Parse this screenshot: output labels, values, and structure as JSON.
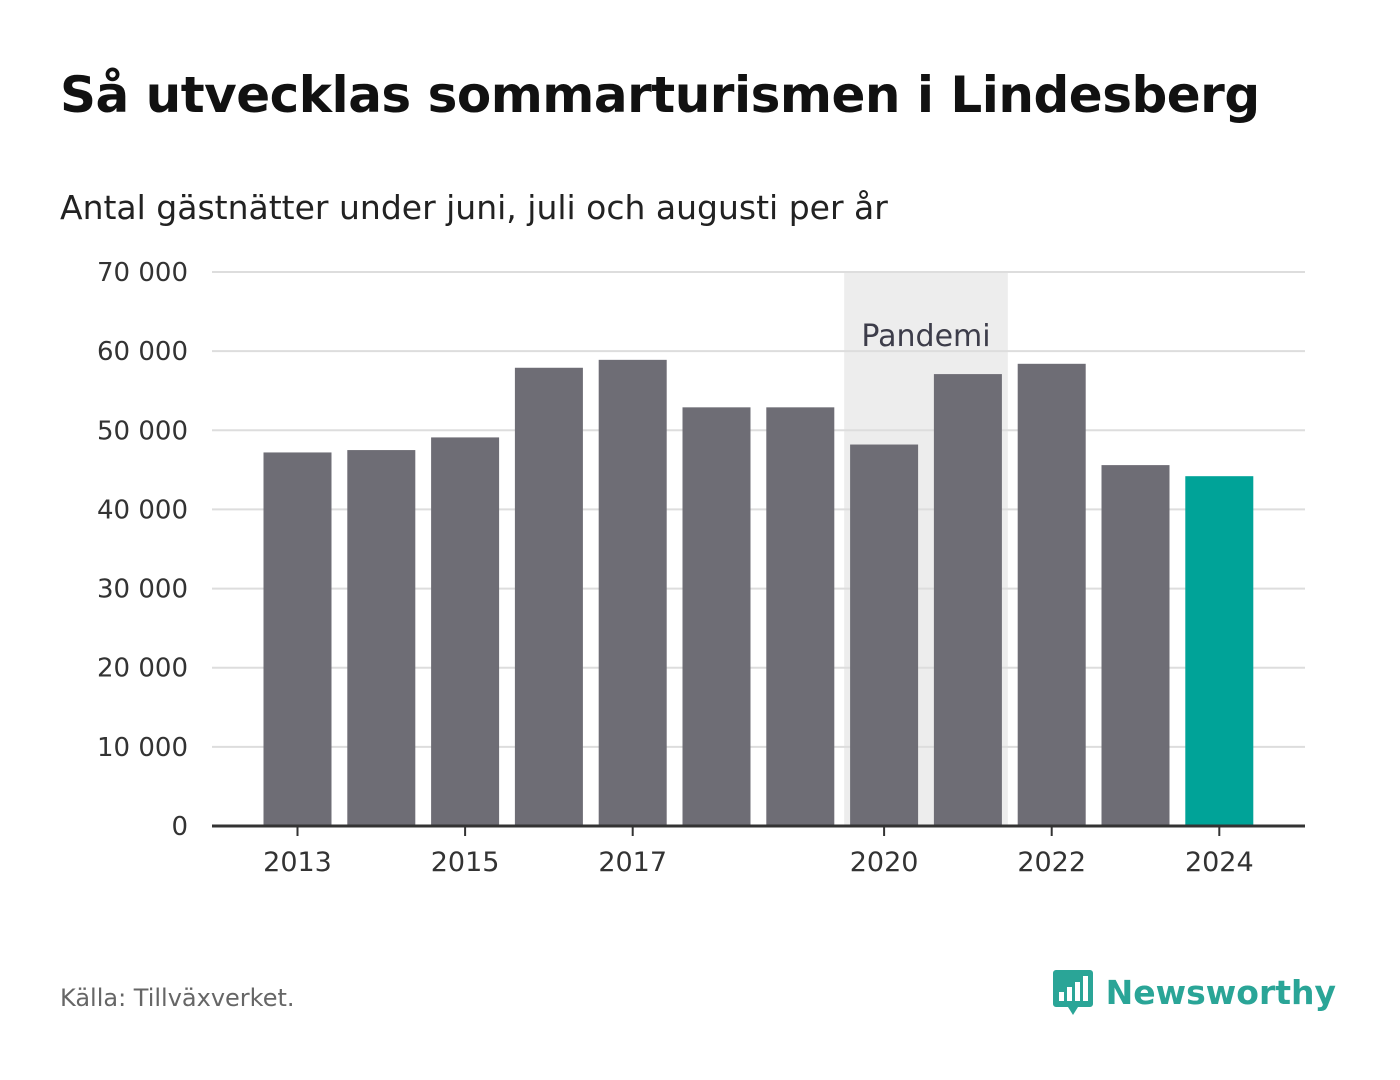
{
  "title": "Så utvecklas sommarturismen i Lindesberg",
  "subtitle": "Antal gästnätter under juni, juli och augusti per år",
  "source": "Källa: Tillväxverket.",
  "brand": {
    "name": "Newsworthy",
    "icon": "newsworthy-logo-icon",
    "color": "#2aa597"
  },
  "chart_data": {
    "type": "bar",
    "categories": [
      "2013",
      "2014",
      "2015",
      "2016",
      "2017",
      "2018",
      "2019",
      "2020",
      "2021",
      "2022",
      "2023",
      "2024"
    ],
    "values": [
      47200,
      47500,
      49100,
      57900,
      58900,
      52900,
      52900,
      48200,
      57100,
      58400,
      45600,
      44200
    ],
    "x_tick_labels": [
      "2013",
      "2015",
      "2017",
      "2020",
      "2022",
      "2024"
    ],
    "y_ticks": [
      0,
      10000,
      20000,
      30000,
      40000,
      50000,
      60000,
      70000
    ],
    "y_tick_labels": [
      "0",
      "10 000",
      "20 000",
      "30 000",
      "40 000",
      "50 000",
      "60 000",
      "70 000"
    ],
    "ylim": [
      0,
      70000
    ],
    "grid": true,
    "colors": {
      "bar": "#6e6d75",
      "highlight": "#00a398",
      "band": "#ededed",
      "grid": "#dddddd",
      "axis": "#333333"
    },
    "highlight_category": "2024",
    "annotation": {
      "label": "Pandemi",
      "from": "2020",
      "to": "2021"
    }
  }
}
